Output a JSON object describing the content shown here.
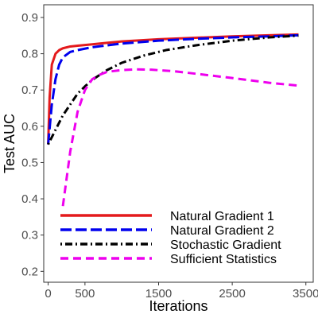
{
  "chart_data": {
    "type": "line",
    "title": "",
    "xlabel": "Iterations",
    "ylabel": "Test AUC",
    "xlim": [
      -60,
      3600
    ],
    "ylim": [
      0.17,
      0.935
    ],
    "xticks": [
      0,
      500,
      1500,
      2500,
      3500
    ],
    "xtick_labels": [
      "0",
      "500",
      "1500",
      "2500",
      "3500"
    ],
    "yticks": [
      0.2,
      0.3,
      0.4,
      0.5,
      0.6,
      0.7,
      0.8,
      0.9
    ],
    "ytick_labels": [
      "0.2",
      "0.3",
      "0.4",
      "0.5",
      "0.6",
      "0.7",
      "0.8",
      "0.9"
    ],
    "grid": false,
    "legend_position": "bottom-left",
    "series": [
      {
        "name": "Natural Gradient 1",
        "color": "#e41a1c",
        "dash": "solid",
        "x": [
          0,
          20,
          50,
          100,
          150,
          200,
          300,
          400,
          600,
          800,
          1000,
          1500,
          2000,
          2500,
          3000,
          3400
        ],
        "y": [
          0.55,
          0.68,
          0.77,
          0.8,
          0.81,
          0.815,
          0.82,
          0.822,
          0.826,
          0.83,
          0.834,
          0.84,
          0.844,
          0.848,
          0.851,
          0.853
        ]
      },
      {
        "name": "Natural Gradient 2",
        "color": "#0000ee",
        "dash": "longdash",
        "x": [
          0,
          50,
          100,
          150,
          200,
          300,
          400,
          600,
          800,
          1000,
          1500,
          2000,
          2500,
          3000,
          3400
        ],
        "y": [
          0.55,
          0.66,
          0.73,
          0.77,
          0.79,
          0.805,
          0.81,
          0.818,
          0.823,
          0.828,
          0.836,
          0.841,
          0.845,
          0.848,
          0.851
        ]
      },
      {
        "name": "Stochastic Gradient",
        "color": "#000000",
        "dash": "dotdash",
        "x": [
          0,
          100,
          200,
          300,
          400,
          500,
          600,
          800,
          1000,
          1300,
          1600,
          2000,
          2500,
          3000,
          3400
        ],
        "y": [
          0.55,
          0.59,
          0.63,
          0.66,
          0.69,
          0.71,
          0.728,
          0.755,
          0.775,
          0.795,
          0.81,
          0.823,
          0.836,
          0.845,
          0.85
        ]
      },
      {
        "name": "Sufficient Statistics",
        "color": "#ee00ee",
        "dash": "dashed",
        "x": [
          200,
          300,
          400,
          500,
          600,
          700,
          800,
          1000,
          1200,
          1400,
          1700,
          2000,
          2500,
          3000,
          3400
        ],
        "y": [
          0.38,
          0.53,
          0.64,
          0.7,
          0.73,
          0.742,
          0.75,
          0.755,
          0.757,
          0.756,
          0.752,
          0.745,
          0.733,
          0.72,
          0.712
        ]
      }
    ]
  }
}
